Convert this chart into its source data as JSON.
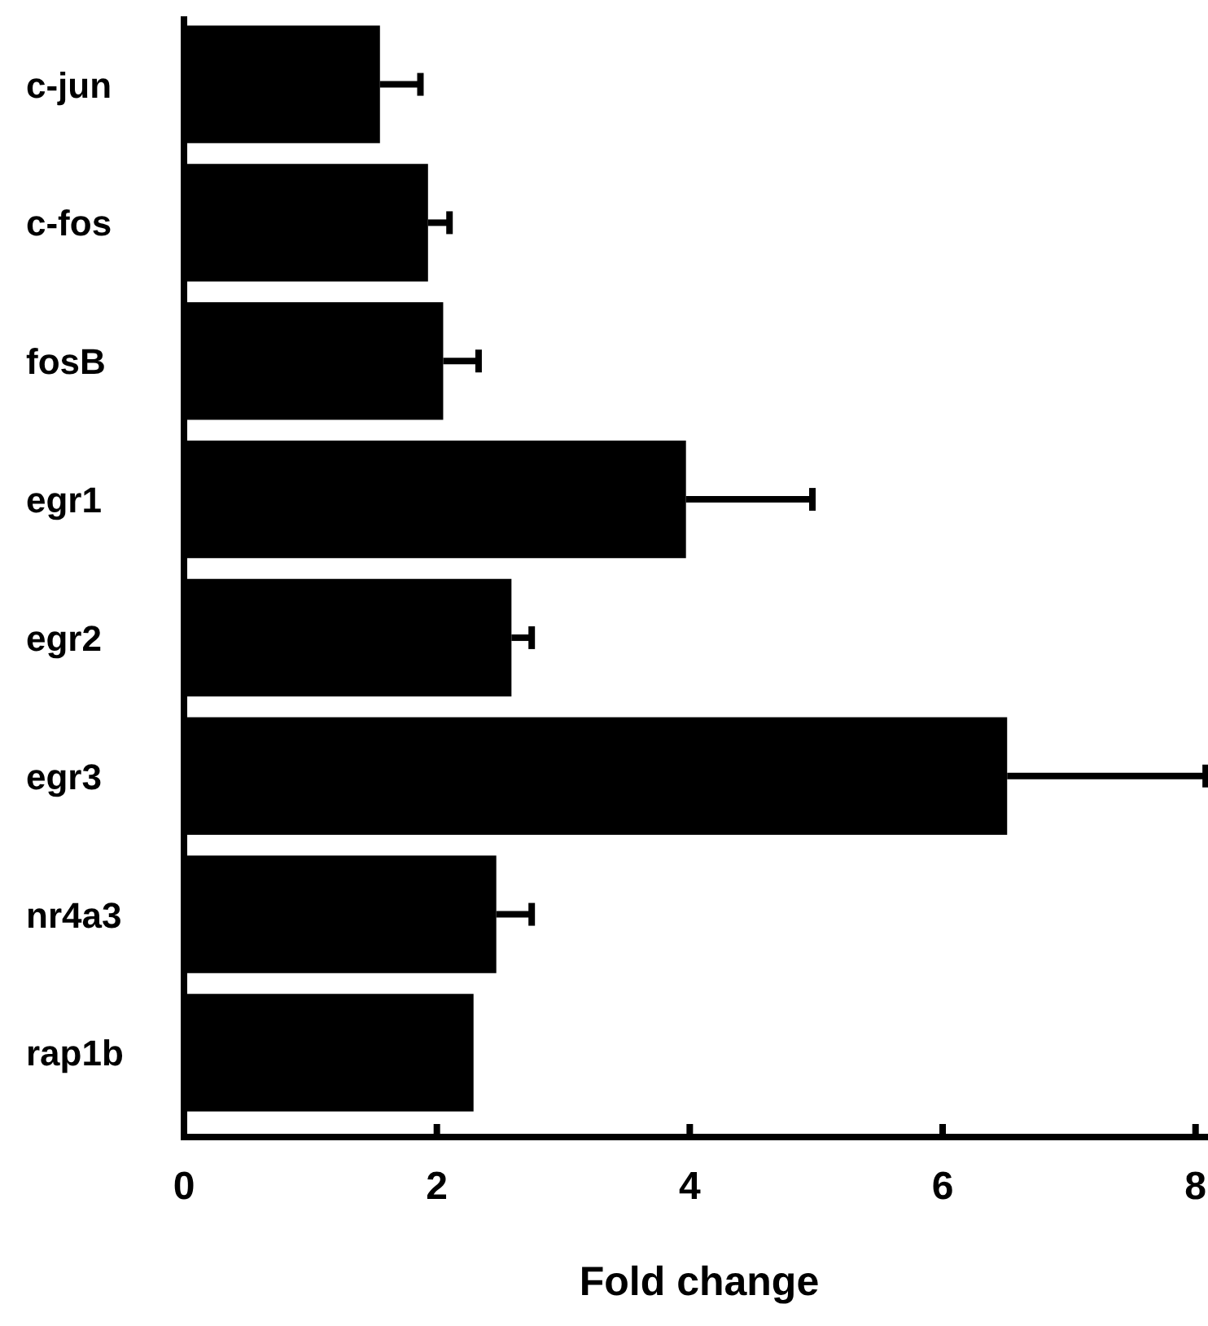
{
  "chart_data": {
    "type": "bar",
    "orientation": "horizontal",
    "xlabel": "Fold change",
    "categories": [
      "c-jun",
      "c-fos",
      "fosB",
      "egr1",
      "egr2",
      "egr3",
      "nr4a3",
      "rap1b"
    ],
    "values": [
      1.55,
      1.93,
      2.05,
      3.97,
      2.59,
      6.51,
      2.47,
      2.29
    ],
    "errors": [
      0.32,
      0.17,
      0.28,
      1.0,
      0.16,
      1.57,
      0.28,
      null
    ],
    "color": "#000000",
    "xlim": [
      0,
      8.15
    ],
    "xticks": [
      0,
      2,
      4,
      6,
      8
    ]
  }
}
